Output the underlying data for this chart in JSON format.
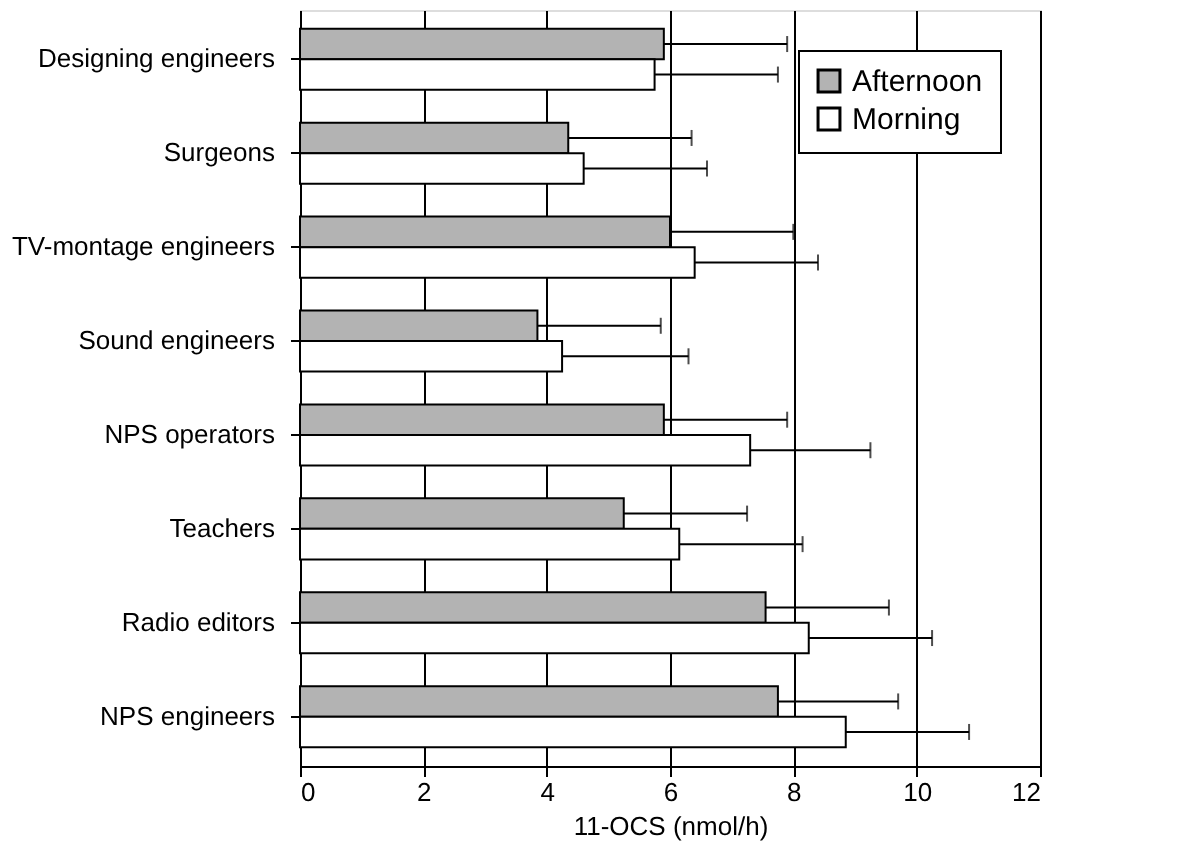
{
  "chart_data": {
    "type": "bar",
    "orientation": "horizontal",
    "xlabel": "11-OCS (nmol/h)",
    "categories": [
      "Designing engineers",
      "Surgeons",
      "TV-montage engineers",
      "Sound engineers",
      "NPS operators",
      "Teachers",
      "Radio editors",
      "NPS engineers"
    ],
    "series": [
      {
        "name": "Afternoon",
        "color": "#b3b3b3",
        "values": [
          5.9,
          4.35,
          6.0,
          3.85,
          5.9,
          5.25,
          7.55,
          7.75
        ],
        "errors": [
          [
            5.9,
            7.9
          ],
          [
            4.35,
            6.35
          ],
          [
            6.0,
            8.0
          ],
          [
            3.85,
            5.85
          ],
          [
            5.9,
            7.9
          ],
          [
            5.25,
            7.25
          ],
          [
            7.55,
            9.55
          ],
          [
            7.75,
            9.7
          ]
        ]
      },
      {
        "name": "Morning",
        "color": "#ffffff",
        "values": [
          5.75,
          4.6,
          6.4,
          4.25,
          7.3,
          6.15,
          8.25,
          8.85
        ],
        "errors": [
          [
            5.75,
            7.75
          ],
          [
            4.6,
            6.6
          ],
          [
            6.4,
            8.4
          ],
          [
            4.25,
            6.3
          ],
          [
            7.3,
            9.25
          ],
          [
            6.15,
            8.15
          ],
          [
            8.25,
            10.25
          ],
          [
            8.85,
            10.85
          ]
        ]
      }
    ],
    "xlim": [
      0,
      12
    ],
    "xticks": [
      0,
      2,
      4,
      6,
      8,
      10,
      12
    ],
    "grid": "x",
    "legend": "top right"
  }
}
